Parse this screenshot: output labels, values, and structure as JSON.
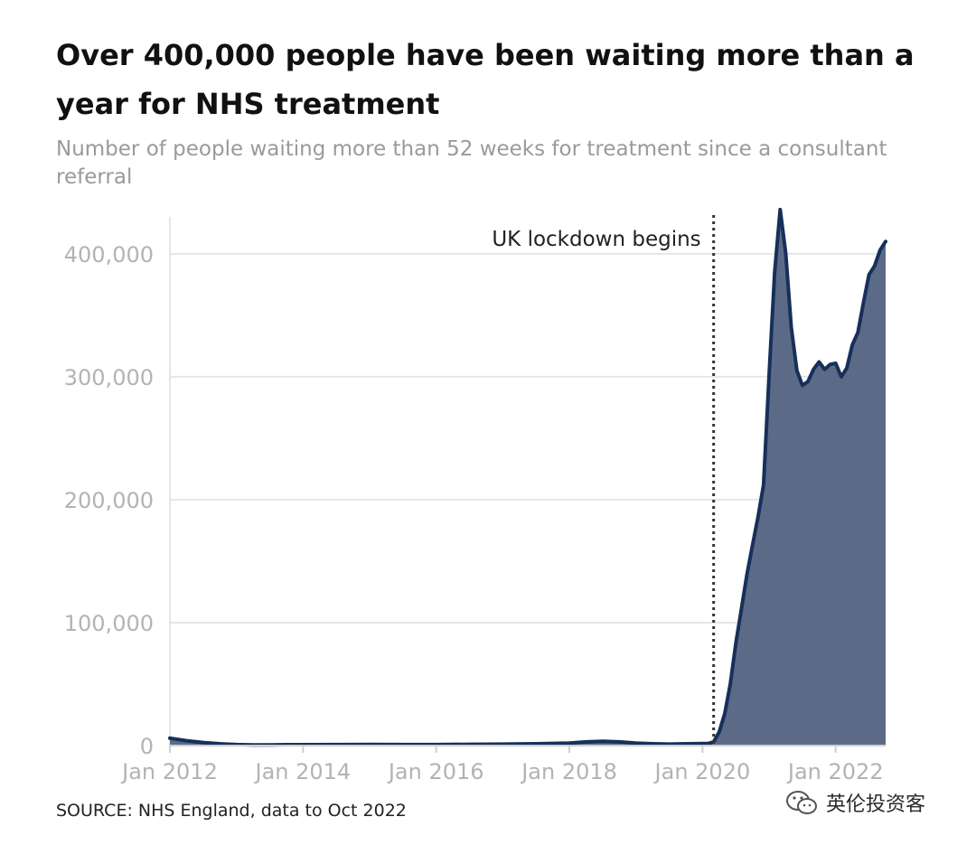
{
  "header": {
    "title": "Over 400,000 people have been waiting more than a year for NHS treatment",
    "subtitle": "Number of people waiting more than 52 weeks for treatment since a consultant referral"
  },
  "footer": {
    "source": "SOURCE: NHS England, data to Oct 2022",
    "watermark": "英伦投资客"
  },
  "colors": {
    "line": "#17305a",
    "area": "#5b6b87",
    "grid": "#e6e6e6",
    "tick_label": "#b3b3b3",
    "annotation_line": "#333333"
  },
  "chart_data": {
    "type": "area",
    "title": "Over 400,000 people have been waiting more than a year for NHS treatment",
    "subtitle": "Number of people waiting more than 52 weeks for treatment since a consultant referral",
    "xlabel": "",
    "ylabel": "",
    "ylim": [
      0,
      430000
    ],
    "yticks": [
      0,
      100000,
      200000,
      300000,
      400000
    ],
    "ytick_labels": [
      "0",
      "100,000",
      "200,000",
      "300,000",
      "400,000"
    ],
    "xticks": [
      "2012-01",
      "2014-01",
      "2016-01",
      "2018-01",
      "2020-01",
      "2022-01"
    ],
    "xtick_labels": [
      "Jan 2012",
      "Jan 2014",
      "Jan 2016",
      "Jan 2018",
      "Jan 2020",
      "Jan 2022"
    ],
    "xlim": [
      "2012-01",
      "2022-10"
    ],
    "grid": true,
    "annotations": [
      {
        "x": "2020-03",
        "label": "UK lockdown begins",
        "style": "dotted-vertical-line"
      }
    ],
    "series": [
      {
        "x": [
          "2012-01",
          "2012-04",
          "2012-07",
          "2012-10",
          "2013-01",
          "2013-04",
          "2013-07",
          "2013-10",
          "2014-01",
          "2014-07",
          "2015-01",
          "2015-07",
          "2016-01",
          "2016-07",
          "2017-01",
          "2017-07",
          "2018-01",
          "2018-04",
          "2018-07",
          "2018-10",
          "2019-01",
          "2019-04",
          "2019-07",
          "2019-10",
          "2020-01",
          "2020-02",
          "2020-03",
          "2020-04",
          "2020-05",
          "2020-06",
          "2020-07",
          "2020-08",
          "2020-09",
          "2020-10",
          "2020-11",
          "2020-12",
          "2021-01",
          "2021-02",
          "2021-03",
          "2021-04",
          "2021-05",
          "2021-06",
          "2021-07",
          "2021-08",
          "2021-09",
          "2021-10",
          "2021-11",
          "2021-12",
          "2022-01",
          "2022-02",
          "2022-03",
          "2022-04",
          "2022-05",
          "2022-06",
          "2022-07",
          "2022-08",
          "2022-09",
          "2022-10"
        ],
        "values": [
          6000,
          4000,
          2500,
          1500,
          800,
          600,
          600,
          700,
          700,
          800,
          900,
          800,
          800,
          1000,
          1200,
          1500,
          2000,
          3000,
          3500,
          3000,
          2000,
          1500,
          1200,
          1500,
          1600,
          1600,
          3100,
          11000,
          26000,
          50000,
          83000,
          111000,
          139000,
          163000,
          186000,
          212000,
          302000,
          385000,
          436000,
          400000,
          340000,
          305000,
          293000,
          296000,
          306000,
          312000,
          306000,
          310000,
          311000,
          300000,
          307000,
          326000,
          336000,
          360000,
          383000,
          390000,
          403000,
          410000
        ]
      }
    ]
  }
}
